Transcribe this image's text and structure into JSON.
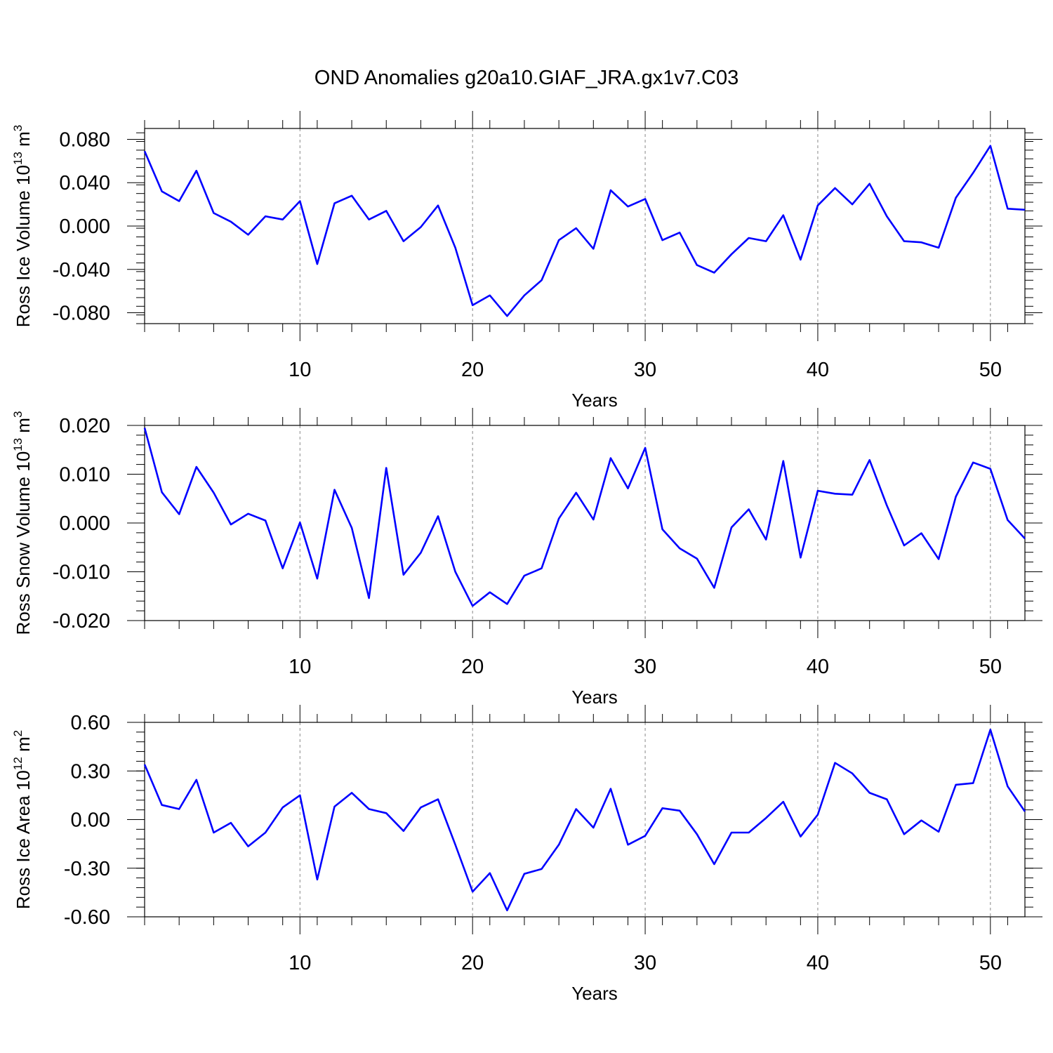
{
  "title": "OND Anomalies g20a10.GIAF_JRA.gx1v7.C03",
  "line_color": "#0000ff",
  "chart_data": [
    {
      "type": "line",
      "ylabel": {
        "main": "Ross Ice Volume 10",
        "sup": "13",
        "unit": " m",
        "unit_sup": "3"
      },
      "xlabel": "Years",
      "xlim": [
        1,
        52
      ],
      "ylim": [
        -0.09,
        0.09
      ],
      "yticks": [
        -0.08,
        -0.04,
        0.0,
        0.04,
        0.08
      ],
      "ytick_labels": [
        "-0.080",
        "-0.040",
        "0.000",
        "0.040",
        "0.080"
      ],
      "xticks": [
        10,
        20,
        30,
        40,
        50
      ],
      "xtick_labels": [
        "10",
        "20",
        "30",
        "40",
        "50"
      ],
      "grid": "vertical dashed",
      "series": [
        {
          "name": "Ross Ice Volume",
          "x": [
            1,
            2,
            3,
            4,
            5,
            6,
            7,
            8,
            9,
            10,
            11,
            12,
            13,
            14,
            15,
            16,
            17,
            18,
            19,
            20,
            21,
            22,
            23,
            24,
            25,
            26,
            27,
            28,
            29,
            30,
            31,
            32,
            33,
            34,
            35,
            36,
            37,
            38,
            39,
            40,
            41,
            42,
            43,
            44,
            45,
            46,
            47,
            48,
            49,
            50,
            51,
            52
          ],
          "values": [
            0.069,
            0.032,
            0.023,
            0.051,
            0.012,
            0.004,
            -0.008,
            0.009,
            0.006,
            0.023,
            -0.035,
            0.021,
            0.028,
            0.006,
            0.014,
            -0.014,
            -0.001,
            0.019,
            -0.02,
            -0.073,
            -0.064,
            -0.083,
            -0.064,
            -0.05,
            -0.013,
            -0.002,
            -0.021,
            0.033,
            0.018,
            0.025,
            -0.013,
            -0.006,
            -0.036,
            -0.043,
            -0.026,
            -0.011,
            -0.014,
            0.01,
            -0.031,
            0.019,
            0.035,
            0.02,
            0.039,
            0.009,
            -0.014,
            -0.015,
            -0.02,
            0.026,
            0.049,
            0.074,
            0.016,
            0.015
          ]
        }
      ]
    },
    {
      "type": "line",
      "ylabel": {
        "main": "Ross Snow Volume 10",
        "sup": "13",
        "unit": " m",
        "unit_sup": "3"
      },
      "xlabel": "Years",
      "xlim": [
        1,
        52
      ],
      "ylim": [
        -0.02,
        0.02
      ],
      "yticks": [
        -0.02,
        -0.01,
        0.0,
        0.01,
        0.02
      ],
      "ytick_labels": [
        "-0.020",
        "-0.010",
        "0.000",
        "0.010",
        "0.020"
      ],
      "xticks": [
        10,
        20,
        30,
        40,
        50
      ],
      "xtick_labels": [
        "10",
        "20",
        "30",
        "40",
        "50"
      ],
      "grid": "vertical dashed",
      "series": [
        {
          "name": "Ross Snow Volume",
          "x": [
            1,
            2,
            3,
            4,
            5,
            6,
            7,
            8,
            9,
            10,
            11,
            12,
            13,
            14,
            15,
            16,
            17,
            18,
            19,
            20,
            21,
            22,
            23,
            24,
            25,
            26,
            27,
            28,
            29,
            30,
            31,
            32,
            33,
            34,
            35,
            36,
            37,
            38,
            39,
            40,
            41,
            42,
            43,
            44,
            45,
            46,
            47,
            48,
            49,
            50,
            51,
            52
          ],
          "values": [
            0.0195,
            0.0063,
            0.0018,
            0.0115,
            0.0062,
            -0.0003,
            0.0019,
            0.0005,
            -0.0093,
            0.0001,
            -0.0114,
            0.0068,
            -0.001,
            -0.0154,
            0.0113,
            -0.0106,
            -0.0061,
            0.0014,
            -0.01,
            -0.017,
            -0.0142,
            -0.0166,
            -0.0108,
            -0.0093,
            0.0009,
            0.0062,
            0.0007,
            0.0133,
            0.0071,
            0.0154,
            -0.0013,
            -0.0052,
            -0.0073,
            -0.0133,
            -0.0009,
            0.0028,
            -0.0034,
            0.0127,
            -0.0071,
            0.0066,
            0.006,
            0.0058,
            0.0129,
            0.0036,
            -0.0046,
            -0.0021,
            -0.0074,
            0.0054,
            0.0124,
            0.0111,
            0.0006,
            -0.0032
          ]
        }
      ]
    },
    {
      "type": "line",
      "ylabel": {
        "main": "Ross Ice Area 10",
        "sup": "12",
        "unit": " m",
        "unit_sup": "2"
      },
      "xlabel": "Years",
      "xlim": [
        1,
        52
      ],
      "ylim": [
        -0.6,
        0.6
      ],
      "yticks": [
        -0.6,
        -0.3,
        0.0,
        0.3,
        0.6
      ],
      "ytick_labels": [
        "-0.60",
        "-0.30",
        "0.00",
        "0.30",
        "0.60"
      ],
      "xticks": [
        10,
        20,
        30,
        40,
        50
      ],
      "xtick_labels": [
        "10",
        "20",
        "30",
        "40",
        "50"
      ],
      "grid": "vertical dashed",
      "series": [
        {
          "name": "Ross Ice Area",
          "x": [
            1,
            2,
            3,
            4,
            5,
            6,
            7,
            8,
            9,
            10,
            11,
            12,
            13,
            14,
            15,
            16,
            17,
            18,
            19,
            20,
            21,
            22,
            23,
            24,
            25,
            26,
            27,
            28,
            29,
            30,
            31,
            32,
            33,
            34,
            35,
            36,
            37,
            38,
            39,
            40,
            41,
            42,
            43,
            44,
            45,
            46,
            47,
            48,
            49,
            50,
            51,
            52
          ],
          "values": [
            0.34,
            0.09,
            0.065,
            0.245,
            -0.08,
            -0.02,
            -0.165,
            -0.08,
            0.075,
            0.15,
            -0.37,
            0.08,
            0.165,
            0.065,
            0.04,
            -0.07,
            0.075,
            0.125,
            -0.155,
            -0.445,
            -0.33,
            -0.56,
            -0.335,
            -0.305,
            -0.155,
            0.065,
            -0.05,
            0.19,
            -0.155,
            -0.1,
            0.07,
            0.055,
            -0.09,
            -0.275,
            -0.08,
            -0.08,
            0.01,
            0.11,
            -0.105,
            0.03,
            0.35,
            0.285,
            0.165,
            0.125,
            -0.09,
            -0.005,
            -0.075,
            0.215,
            0.225,
            0.555,
            0.205,
            0.05
          ]
        }
      ]
    }
  ]
}
